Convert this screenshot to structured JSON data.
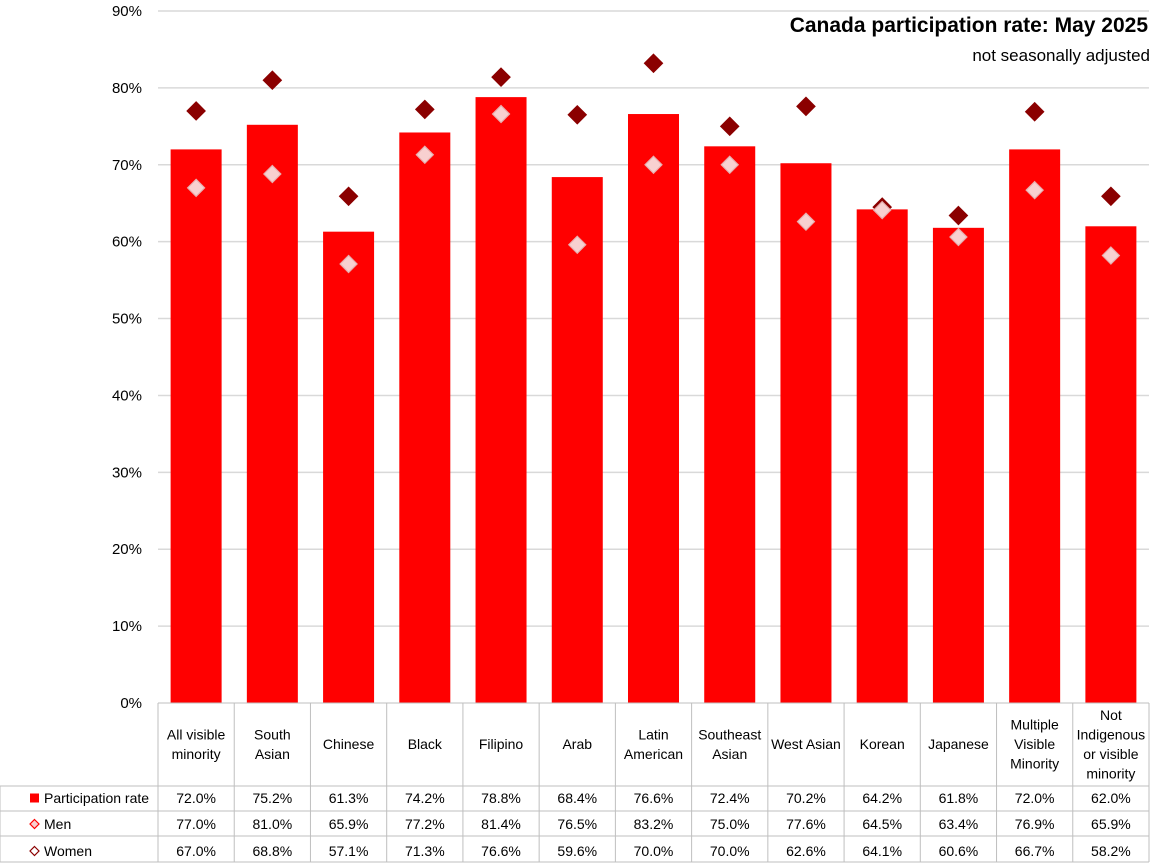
{
  "title": "Canada participation rate: May 2025",
  "subtitle": "not seasonally adjusted",
  "colors": {
    "bar": "#ff0000",
    "men_marker": "#8b0000",
    "women_marker": "#f8d0d0",
    "grid": "#d9d9d9"
  },
  "chart_data": {
    "type": "bar",
    "title": "Canada participation rate: May 2025",
    "subtitle": "not seasonally adjusted",
    "ylim": [
      0,
      90
    ],
    "yticks": [
      "0%",
      "10%",
      "20%",
      "30%",
      "40%",
      "50%",
      "60%",
      "70%",
      "80%",
      "90%"
    ],
    "grid": true,
    "legend": "data-table-bottom",
    "categories": [
      [
        "All visible",
        "minority"
      ],
      [
        "South",
        "Asian"
      ],
      [
        "Chinese"
      ],
      [
        "Black"
      ],
      [
        "Filipino"
      ],
      [
        "Arab"
      ],
      [
        "Latin",
        "American"
      ],
      [
        "Southeast",
        "Asian"
      ],
      [
        "West Asian"
      ],
      [
        "Korean"
      ],
      [
        "Japanese"
      ],
      [
        "Multiple",
        "Visible",
        "Minority"
      ],
      [
        "Not",
        "Indigenous",
        "or visible",
        "minority"
      ]
    ],
    "series": [
      {
        "name": "Participation rate",
        "type": "bar",
        "values": [
          72.0,
          75.2,
          61.3,
          74.2,
          78.8,
          68.4,
          76.6,
          72.4,
          70.2,
          64.2,
          61.8,
          72.0,
          62.0
        ],
        "labels": [
          "72.0%",
          "75.2%",
          "61.3%",
          "74.2%",
          "78.8%",
          "68.4%",
          "76.6%",
          "72.4%",
          "70.2%",
          "64.2%",
          "61.8%",
          "72.0%",
          "62.0%"
        ]
      },
      {
        "name": "Men",
        "type": "marker",
        "values": [
          77.0,
          81.0,
          65.9,
          77.2,
          81.4,
          76.5,
          83.2,
          75.0,
          77.6,
          64.5,
          63.4,
          76.9,
          65.9
        ],
        "labels": [
          "77.0%",
          "81.0%",
          "65.9%",
          "77.2%",
          "81.4%",
          "76.5%",
          "83.2%",
          "75.0%",
          "77.6%",
          "64.5%",
          "63.4%",
          "76.9%",
          "65.9%"
        ]
      },
      {
        "name": "Women",
        "type": "marker",
        "values": [
          67.0,
          68.8,
          57.1,
          71.3,
          76.6,
          59.6,
          70.0,
          70.0,
          62.6,
          64.1,
          60.6,
          66.7,
          58.2
        ],
        "labels": [
          "67.0%",
          "68.8%",
          "57.1%",
          "71.3%",
          "76.6%",
          "59.6%",
          "70.0%",
          "70.0%",
          "62.6%",
          "64.1%",
          "60.6%",
          "66.7%",
          "58.2%"
        ]
      }
    ]
  }
}
